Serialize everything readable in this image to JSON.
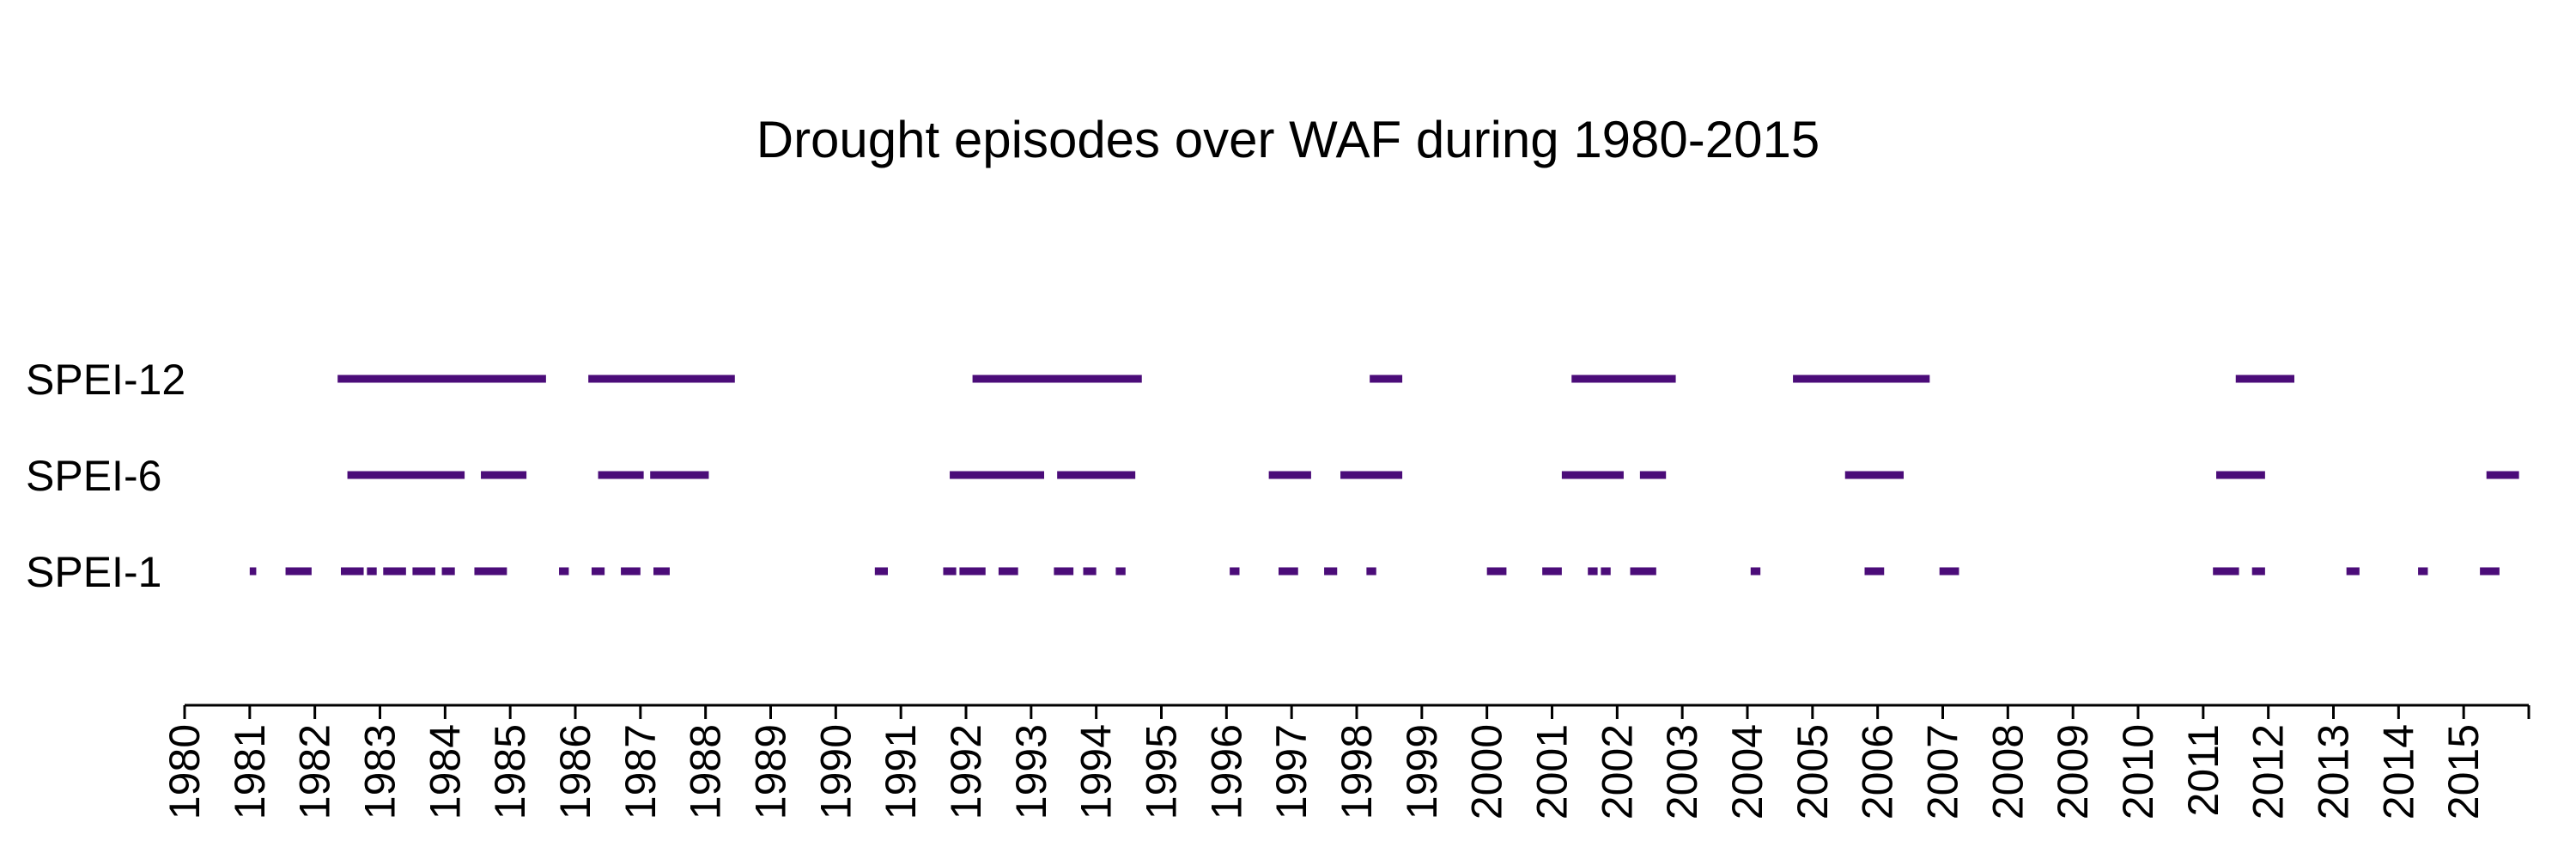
{
  "chart_data": {
    "type": "timeline",
    "title": "Drought episodes over WAF during 1980-2015",
    "xlabel": "",
    "ylabel": "",
    "xlim": [
      1980,
      2016
    ],
    "grid": false,
    "legend": "none",
    "color": "#4B0C79",
    "x_ticks": [
      "1980",
      "1981",
      "1982",
      "1983",
      "1984",
      "1985",
      "1986",
      "1987",
      "1988",
      "1989",
      "1990",
      "1991",
      "1992",
      "1993",
      "1994",
      "1995",
      "1996",
      "1997",
      "1998",
      "1999",
      "2000",
      "2001",
      "2002",
      "2003",
      "2004",
      "2005",
      "2006",
      "2007",
      "2008",
      "2009",
      "2010",
      "2011",
      "2012",
      "2013",
      "2014",
      "2015"
    ],
    "series": [
      {
        "label": "SPEI-12",
        "episodes": [
          [
            1982.35,
            1985.55
          ],
          [
            1986.2,
            1988.45
          ],
          [
            1992.1,
            1994.7
          ],
          [
            1998.2,
            1998.7
          ],
          [
            2001.3,
            2002.9
          ],
          [
            2004.7,
            2006.8
          ],
          [
            2011.5,
            2012.4
          ]
        ]
      },
      {
        "label": "SPEI-6",
        "episodes": [
          [
            1982.5,
            1984.3
          ],
          [
            1984.55,
            1985.25
          ],
          [
            1986.35,
            1987.05
          ],
          [
            1987.15,
            1988.05
          ],
          [
            1991.75,
            1993.2
          ],
          [
            1993.4,
            1994.6
          ],
          [
            1996.65,
            1997.3
          ],
          [
            1997.75,
            1998.7
          ],
          [
            2001.15,
            2002.1
          ],
          [
            2002.35,
            2002.75
          ],
          [
            2005.5,
            2006.4
          ],
          [
            2011.2,
            2011.95
          ],
          [
            2015.35,
            2015.85
          ]
        ]
      },
      {
        "label": "SPEI-1",
        "episodes": [
          [
            1981.0,
            1981.1
          ],
          [
            1981.55,
            1981.95
          ],
          [
            1982.4,
            1982.75
          ],
          [
            1982.8,
            1982.95
          ],
          [
            1983.05,
            1983.4
          ],
          [
            1983.5,
            1983.85
          ],
          [
            1983.95,
            1984.15
          ],
          [
            1984.45,
            1984.95
          ],
          [
            1985.75,
            1985.9
          ],
          [
            1986.25,
            1986.45
          ],
          [
            1986.7,
            1987.0
          ],
          [
            1987.2,
            1987.45
          ],
          [
            1990.6,
            1990.8
          ],
          [
            1991.65,
            1991.85
          ],
          [
            1991.9,
            1992.3
          ],
          [
            1992.5,
            1992.8
          ],
          [
            1993.35,
            1993.65
          ],
          [
            1993.8,
            1994.0
          ],
          [
            1994.3,
            1994.45
          ],
          [
            1996.05,
            1996.2
          ],
          [
            1996.8,
            1997.1
          ],
          [
            1997.5,
            1997.7
          ],
          [
            1998.15,
            1998.3
          ],
          [
            2000.0,
            2000.3
          ],
          [
            2000.85,
            2001.15
          ],
          [
            2001.55,
            2001.7
          ],
          [
            2001.75,
            2001.9
          ],
          [
            2002.2,
            2002.6
          ],
          [
            2004.05,
            2004.2
          ],
          [
            2005.8,
            2006.1
          ],
          [
            2006.95,
            2007.25
          ],
          [
            2011.15,
            2011.55
          ],
          [
            2011.75,
            2011.95
          ],
          [
            2013.2,
            2013.4
          ],
          [
            2014.3,
            2014.45
          ],
          [
            2015.25,
            2015.55
          ]
        ]
      }
    ]
  }
}
